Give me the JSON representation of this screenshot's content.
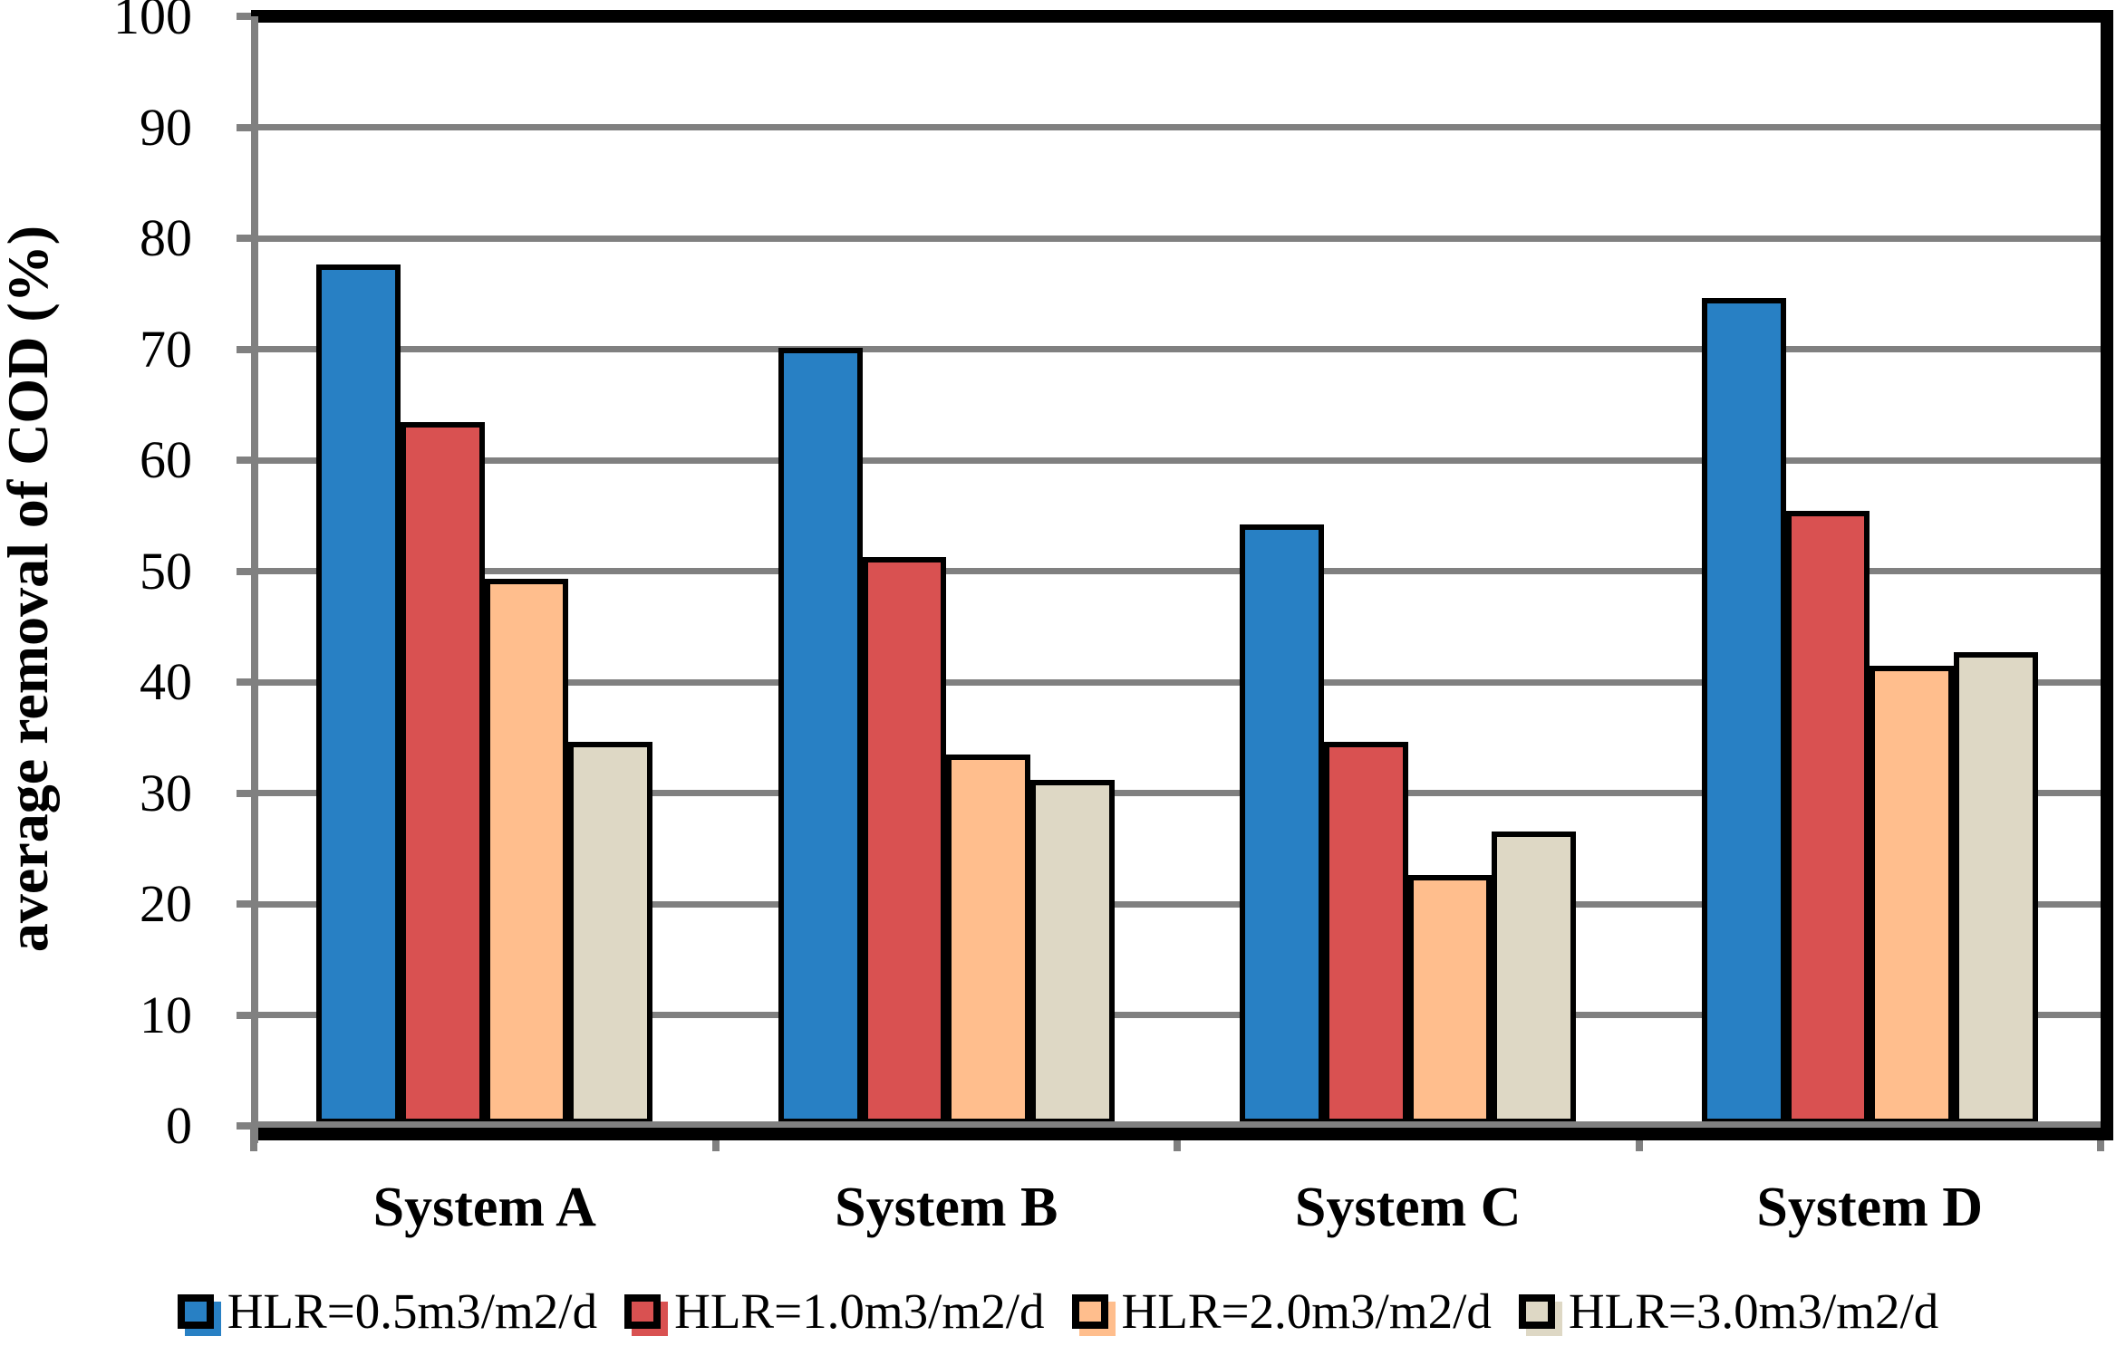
{
  "chart_data": {
    "type": "bar",
    "title": "",
    "xlabel": "",
    "ylabel": "average removal of COD (%)",
    "ylim": [
      0,
      100
    ],
    "y_ticks": [
      0,
      10,
      20,
      30,
      40,
      50,
      60,
      70,
      80,
      90,
      100
    ],
    "grid": true,
    "legend_position": "bottom",
    "categories": [
      "System A",
      "System B",
      "System C",
      "System D"
    ],
    "series": [
      {
        "name": "HLR=0.5m3/m2/d",
        "color": "#2880C4",
        "values": [
          77.6,
          70.1,
          54.2,
          74.6
        ]
      },
      {
        "name": "HLR=1.0m3/m2/d",
        "color": "#D95151",
        "values": [
          63.4,
          51.3,
          34.6,
          55.4
        ]
      },
      {
        "name": "HLR=2.0m3/m2/d",
        "color": "#FFBE8D",
        "values": [
          49.3,
          33.5,
          22.6,
          41.5
        ]
      },
      {
        "name": "HLR=3.0m3/m2/d",
        "color": "#DED8C5",
        "values": [
          34.6,
          31.2,
          26.5,
          42.7
        ]
      }
    ],
    "colors": {
      "gridline": "#808080",
      "axis": "#808080",
      "plot_border": "#000000",
      "bar_outline": "#000000"
    }
  }
}
